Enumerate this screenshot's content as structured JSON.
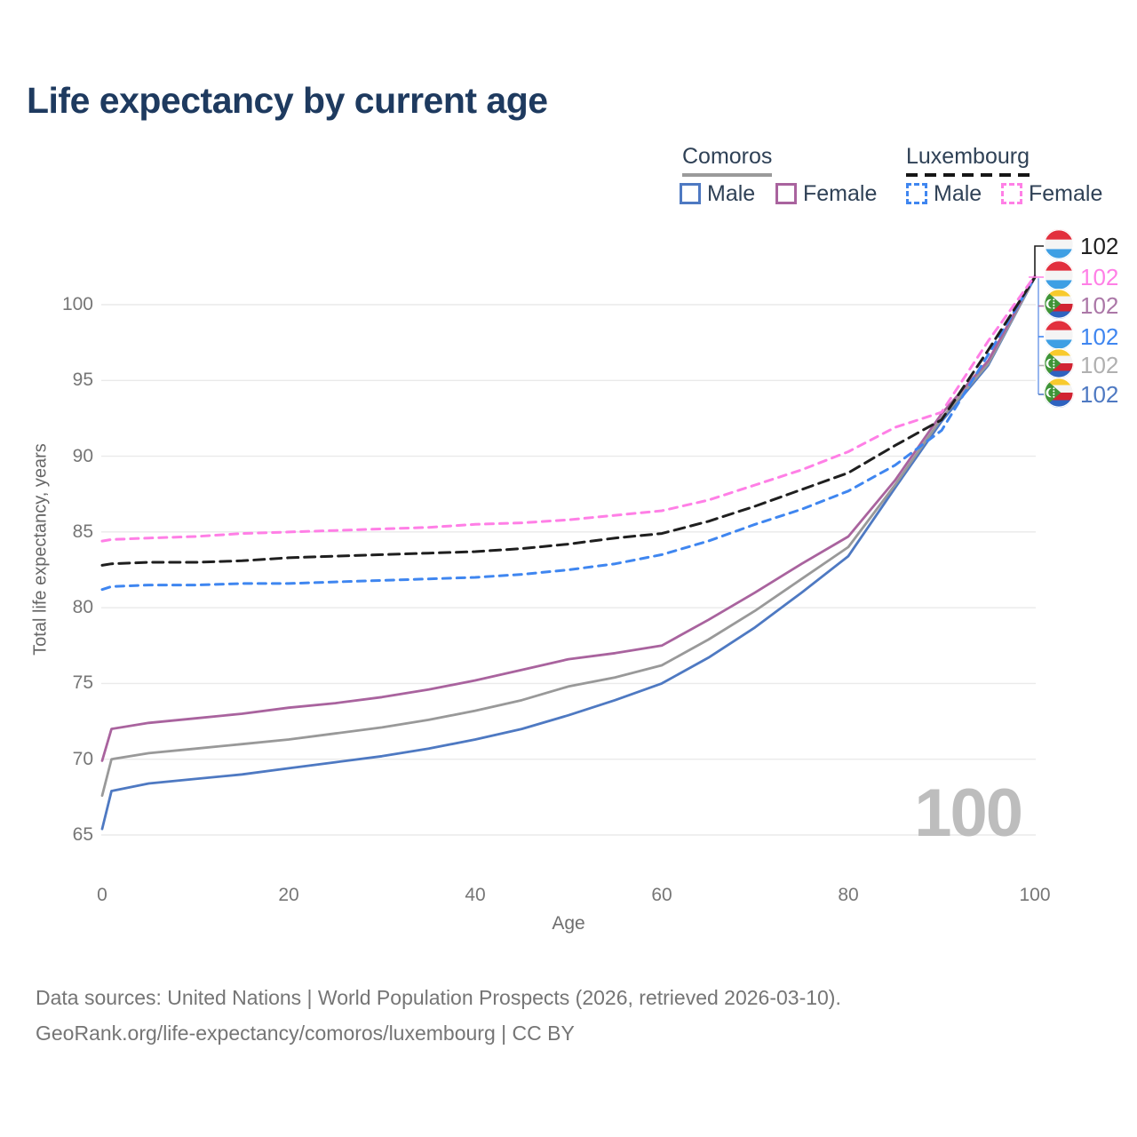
{
  "title": "Life expectancy by current age",
  "legend": {
    "groups": [
      {
        "label": "Comoros",
        "style": "solid",
        "underline_color": "#9a9a9a",
        "items": [
          {
            "label": "Male",
            "color": "#4e79c2"
          },
          {
            "label": "Female",
            "color": "#a9639e"
          }
        ]
      },
      {
        "label": "Luxembourg",
        "style": "dashed",
        "underline_color": "#161616",
        "items": [
          {
            "label": "Male",
            "color": "#3f86f0"
          },
          {
            "label": "Female",
            "color": "#ff7fe6"
          }
        ]
      }
    ]
  },
  "axes": {
    "y_title": "Total life expectancy, years",
    "x_title": "Age"
  },
  "watermark": "100",
  "end_labels": [
    {
      "flag": "luxembourg",
      "series": "Luxembourg Total",
      "value": "102",
      "color": "#1f1f1f"
    },
    {
      "flag": "luxembourg",
      "series": "Luxembourg Female",
      "value": "102",
      "color": "#ff7fe6"
    },
    {
      "flag": "comoros",
      "series": "Comoros Female",
      "value": "102",
      "color": "#ab77a7"
    },
    {
      "flag": "luxembourg",
      "series": "Luxembourg Male",
      "value": "102",
      "color": "#3f86f0"
    },
    {
      "flag": "comoros",
      "series": "Comoros Total",
      "value": "102",
      "color": "#b0b0b0"
    },
    {
      "flag": "comoros",
      "series": "Comoros Male",
      "value": "102",
      "color": "#4e79c2"
    }
  ],
  "footer": {
    "line1": "Data sources: United Nations | World Population Prospects (2026, retrieved 2026-03-10).",
    "line2": "GeoRank.org/life-expectancy/comoros/luxembourg | CC BY"
  },
  "chart_data": {
    "type": "line",
    "title": "Life expectancy by current age",
    "xlabel": "Age",
    "ylabel": "Total life expectancy, years",
    "xlim": [
      0,
      100
    ],
    "ylim": [
      65,
      100
    ],
    "x_ticks": [
      0,
      20,
      40,
      60,
      80,
      100
    ],
    "y_ticks": [
      65,
      70,
      75,
      80,
      85,
      90,
      95,
      100
    ],
    "grid": "horizontal",
    "legend_position": "top-right",
    "x": [
      0,
      1,
      5,
      10,
      15,
      20,
      25,
      30,
      35,
      40,
      45,
      50,
      55,
      60,
      65,
      70,
      75,
      80,
      85,
      90,
      95,
      100
    ],
    "series": [
      {
        "name": "Comoros Male",
        "color": "#4e79c2",
        "dash": false,
        "values": [
          65.4,
          67.9,
          68.4,
          68.7,
          69.0,
          69.4,
          69.8,
          70.2,
          70.7,
          71.3,
          72.0,
          72.9,
          73.9,
          75.0,
          76.7,
          78.7,
          81.0,
          83.4,
          87.9,
          92.3,
          96.0,
          101.8
        ]
      },
      {
        "name": "Comoros Total",
        "color": "#999999",
        "dash": false,
        "values": [
          67.6,
          70.0,
          70.4,
          70.7,
          71.0,
          71.3,
          71.7,
          72.1,
          72.6,
          73.2,
          73.9,
          74.8,
          75.4,
          76.2,
          77.9,
          79.8,
          81.9,
          84.0,
          88.1,
          92.5,
          96.1,
          101.8
        ]
      },
      {
        "name": "Comoros Female",
        "color": "#a9639e",
        "dash": false,
        "values": [
          69.9,
          72.0,
          72.4,
          72.7,
          73.0,
          73.4,
          73.7,
          74.1,
          74.6,
          75.2,
          75.9,
          76.6,
          77.0,
          77.5,
          79.2,
          81.0,
          82.9,
          84.7,
          88.4,
          92.8,
          96.3,
          101.9
        ]
      },
      {
        "name": "Luxembourg Male",
        "color": "#3f86f0",
        "dash": true,
        "values": [
          81.2,
          81.4,
          81.5,
          81.5,
          81.6,
          81.6,
          81.7,
          81.8,
          81.9,
          82.0,
          82.2,
          82.5,
          82.9,
          83.5,
          84.4,
          85.5,
          86.5,
          87.7,
          89.4,
          91.7,
          96.7,
          101.8
        ]
      },
      {
        "name": "Luxembourg Total",
        "color": "#1f1f1f",
        "dash": true,
        "values": [
          82.8,
          82.9,
          83.0,
          83.0,
          83.1,
          83.3,
          83.4,
          83.5,
          83.6,
          83.7,
          83.9,
          84.2,
          84.6,
          84.9,
          85.7,
          86.7,
          87.8,
          88.9,
          90.7,
          92.4,
          97.0,
          101.8
        ]
      },
      {
        "name": "Luxembourg Female",
        "color": "#ff7fe6",
        "dash": true,
        "values": [
          84.4,
          84.5,
          84.6,
          84.7,
          84.9,
          85.0,
          85.1,
          85.2,
          85.3,
          85.5,
          85.6,
          85.8,
          86.1,
          86.4,
          87.1,
          88.1,
          89.1,
          90.3,
          91.9,
          92.9,
          97.6,
          101.9
        ]
      }
    ]
  }
}
